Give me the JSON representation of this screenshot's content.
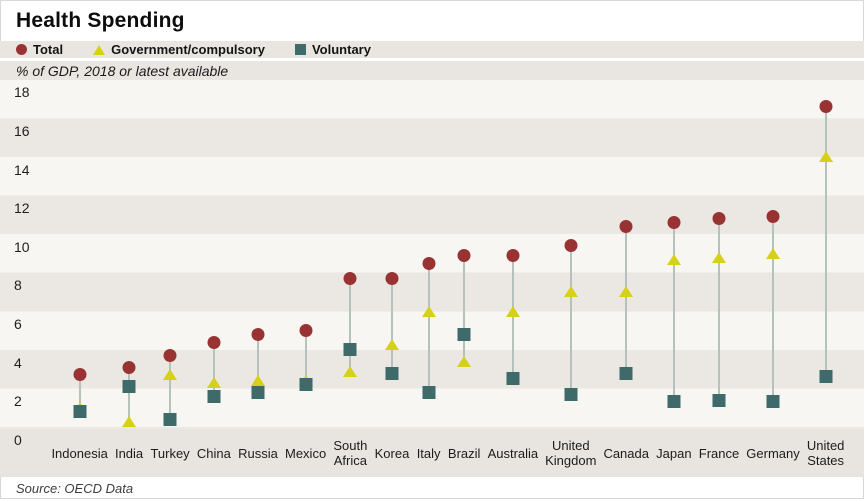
{
  "title": "Health Spending",
  "subtitle": "% of GDP, 2018 or latest available",
  "source": "Source: OECD Data",
  "colors": {
    "total": "#993333",
    "government": "#d6d117",
    "voluntary": "#3e6a6a",
    "connector": "#b5c1bc",
    "stripe_light": "#f7f6f2",
    "stripe_dark": "#ebe8e4",
    "band_bg": "#e9e6e2",
    "axis_bg": "#e8e5e1"
  },
  "legend": [
    {
      "label": "Total",
      "marker": "circle",
      "color": "#993333"
    },
    {
      "label": "Government/compulsory",
      "marker": "triangle",
      "color": "#d6d117"
    },
    {
      "label": "Voluntary",
      "marker": "square",
      "color": "#3e6a6a"
    }
  ],
  "chart_data": {
    "type": "scatter",
    "title": "Health Spending",
    "subtitle": "% of GDP, 2018 or latest available",
    "xlabel": "",
    "ylabel": "% of GDP",
    "ylim": [
      0,
      18
    ],
    "yticks": [
      0,
      2,
      4,
      6,
      8,
      10,
      12,
      14,
      16,
      18
    ],
    "grid": "striped-bands",
    "legend_position": "top",
    "categories": [
      "Indonesia",
      "India",
      "Turkey",
      "China",
      "Russia",
      "Mexico",
      "South\nAfrica",
      "Korea",
      "Italy",
      "Brazil",
      "Australia",
      "United\nKingdom",
      "Canada",
      "Japan",
      "France",
      "Germany",
      "United\nStates"
    ],
    "series": [
      {
        "name": "Total",
        "marker": "circle",
        "color": "#993333",
        "values": [
          3.2,
          3.6,
          4.2,
          4.9,
          5.3,
          5.5,
          8.2,
          8.2,
          9.0,
          9.4,
          9.4,
          9.9,
          10.9,
          11.1,
          11.3,
          11.4,
          17.1
        ]
      },
      {
        "name": "Government/compulsory",
        "marker": "triangle",
        "color": "#d6d117",
        "values": [
          1.5,
          0.8,
          3.2,
          2.8,
          2.9,
          2.9,
          3.4,
          4.8,
          6.5,
          3.9,
          6.5,
          7.5,
          7.5,
          9.2,
          9.3,
          9.5,
          14.5
        ]
      },
      {
        "name": "Voluntary",
        "marker": "square",
        "color": "#3e6a6a",
        "values": [
          1.3,
          2.6,
          0.9,
          2.1,
          2.3,
          2.7,
          4.5,
          3.3,
          2.3,
          5.3,
          3.0,
          2.2,
          3.3,
          1.8,
          1.9,
          1.8,
          3.1
        ]
      }
    ]
  }
}
